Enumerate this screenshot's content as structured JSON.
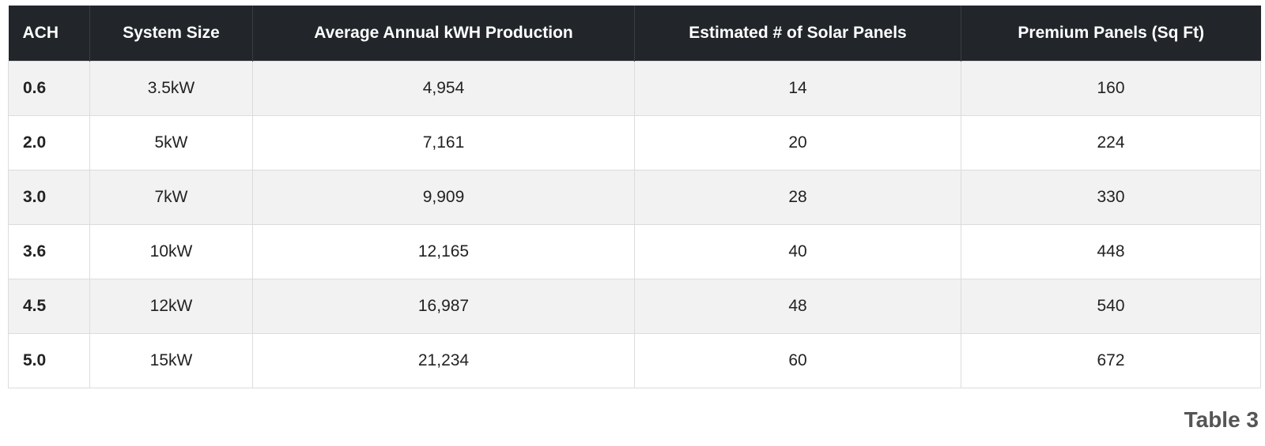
{
  "table": {
    "headers": [
      "ACH",
      "System Size",
      "Average Annual kWH Production",
      "Estimated # of Solar Panels",
      "Premium Panels (Sq Ft)"
    ],
    "rows": [
      [
        "0.6",
        "3.5kW",
        "4,954",
        "14",
        "160"
      ],
      [
        "2.0",
        "5kW",
        "7,161",
        "20",
        "224"
      ],
      [
        "3.0",
        "7kW",
        "9,909",
        "28",
        "330"
      ],
      [
        "3.6",
        "10kW",
        "12,165",
        "40",
        "448"
      ],
      [
        "4.5",
        "12kW",
        "16,987",
        "48",
        "540"
      ],
      [
        "5.0",
        "15kW",
        "21,234",
        "60",
        "672"
      ]
    ]
  },
  "caption": "Table 3",
  "colors": {
    "header_bg": "#22262a",
    "header_text": "#ffffff",
    "row_alt_bg": "#f2f2f2",
    "border": "#dcdcdc",
    "caption_text": "#555555"
  }
}
